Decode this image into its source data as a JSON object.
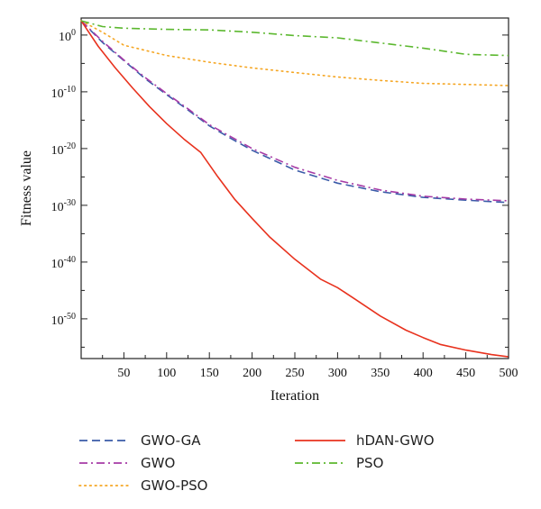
{
  "chart_data": {
    "type": "line",
    "title": "",
    "xlabel": "Iteration",
    "ylabel": "Fitness value",
    "xlim": [
      0,
      500
    ],
    "ylim_log10": [
      -57,
      3
    ],
    "y_scale": "log",
    "grid": false,
    "legend_position": "below",
    "x_ticks": [
      50,
      100,
      150,
      200,
      250,
      300,
      350,
      400,
      450,
      500
    ],
    "x_tick_labels": [
      "50",
      "100",
      "150",
      "200",
      "250",
      "300",
      "350",
      "400",
      "450",
      "500"
    ],
    "y_ticks_log10": [
      0,
      -10,
      -20,
      -30,
      -40,
      -50
    ],
    "y_tick_labels": [
      {
        "base": "10",
        "exp": "0"
      },
      {
        "base": "10",
        "exp": "-10"
      },
      {
        "base": "10",
        "exp": "-20"
      },
      {
        "base": "10",
        "exp": "-30"
      },
      {
        "base": "10",
        "exp": "-40"
      },
      {
        "base": "10",
        "exp": "-50"
      }
    ],
    "series": [
      {
        "name": "GWO-GA",
        "color": "#3a5ba8",
        "dash": "dashed",
        "x": [
          0,
          25,
          50,
          75,
          100,
          125,
          150,
          175,
          200,
          250,
          300,
          350,
          400,
          450,
          500
        ],
        "log10_y": [
          2.5,
          -1.3,
          -4.5,
          -7.7,
          -10.5,
          -13.2,
          -16.0,
          -18.2,
          -20.3,
          -23.8,
          -26.1,
          -27.6,
          -28.6,
          -29.1,
          -29.5
        ]
      },
      {
        "name": "GWO",
        "color": "#a63ba6",
        "dash": "dashdot",
        "x": [
          0,
          25,
          50,
          75,
          100,
          125,
          150,
          175,
          200,
          250,
          300,
          350,
          400,
          450,
          500
        ],
        "log10_y": [
          2.5,
          -1.1,
          -4.4,
          -7.5,
          -10.3,
          -13.0,
          -15.8,
          -17.9,
          -20.0,
          -23.3,
          -25.6,
          -27.3,
          -28.4,
          -28.9,
          -29.2
        ]
      },
      {
        "name": "GWO-PSO",
        "color": "#f5a623",
        "dash": "dotted",
        "x": [
          0,
          25,
          50,
          100,
          150,
          200,
          250,
          300,
          350,
          400,
          450,
          500
        ],
        "log10_y": [
          2.5,
          0.5,
          -1.8,
          -3.6,
          -4.8,
          -5.8,
          -6.6,
          -7.4,
          -8.0,
          -8.5,
          -8.7,
          -8.9
        ]
      },
      {
        "name": "hDAN-GWO",
        "color": "#e8321e",
        "dash": "solid",
        "x": [
          0,
          20,
          40,
          60,
          80,
          100,
          120,
          140,
          160,
          180,
          200,
          220,
          250,
          280,
          300,
          320,
          350,
          380,
          400,
          420,
          450,
          480,
          500
        ],
        "log10_y": [
          2.5,
          -2.0,
          -5.8,
          -9.3,
          -12.6,
          -15.6,
          -18.3,
          -20.7,
          -25.0,
          -29.0,
          -32.3,
          -35.5,
          -39.5,
          -43.0,
          -44.5,
          -46.5,
          -49.5,
          -52.0,
          -53.3,
          -54.5,
          -55.5,
          -56.3,
          -56.7
        ]
      },
      {
        "name": "PSO",
        "color": "#5cb82f",
        "dash": "dashdot",
        "x": [
          0,
          25,
          50,
          100,
          150,
          200,
          250,
          300,
          350,
          400,
          450,
          500
        ],
        "log10_y": [
          2.5,
          1.5,
          1.2,
          1.0,
          0.9,
          0.5,
          -0.1,
          -0.5,
          -1.4,
          -2.3,
          -3.4,
          -3.6
        ]
      }
    ],
    "legend": [
      {
        "label": "GWO-GA",
        "color": "#3a5ba8",
        "dash": "dashed"
      },
      {
        "label": "hDAN-GWO",
        "color": "#e8321e",
        "dash": "solid"
      },
      {
        "label": "GWO",
        "color": "#a63ba6",
        "dash": "dashdot"
      },
      {
        "label": "PSO",
        "color": "#5cb82f",
        "dash": "dashdot"
      },
      {
        "label": "GWO-PSO",
        "color": "#f5a623",
        "dash": "dotted"
      }
    ]
  }
}
